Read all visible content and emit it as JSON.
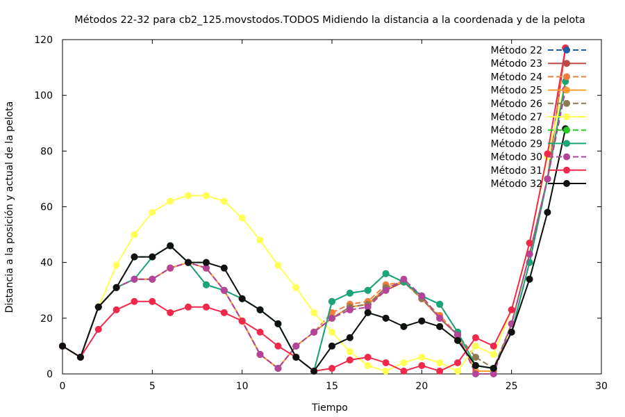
{
  "chart_data": {
    "type": "line",
    "title": "Métodos 22-32 para cb2_125.movstodos.TODOS Midiendo la distancia a la coordenada y de la pelota",
    "xlabel": "Tiempo",
    "ylabel": "Distancia a la posición y actual de la pelota",
    "xlim": [
      0,
      30
    ],
    "ylim": [
      0,
      120
    ],
    "x_ticks": [
      0,
      5,
      10,
      15,
      20,
      25,
      30
    ],
    "y_ticks": [
      0,
      20,
      40,
      60,
      80,
      100,
      120
    ],
    "grid": false,
    "legend_position": "top-right",
    "x": [
      0,
      1,
      2,
      3,
      4,
      5,
      6,
      7,
      8,
      9,
      10,
      11,
      12,
      13,
      14,
      15,
      16,
      17,
      18,
      19,
      20,
      21,
      22,
      23,
      24,
      25,
      26,
      27,
      28
    ],
    "series": [
      {
        "name": "Método 22",
        "color": "#1f5fa6",
        "dash": "8,4",
        "values": [
          10,
          6,
          24,
          31,
          42,
          42,
          46,
          40,
          32,
          30,
          27,
          23,
          18,
          6,
          1,
          26,
          29,
          30,
          36,
          33,
          28,
          25,
          15,
          3,
          2,
          15,
          40,
          70,
          117
        ]
      },
      {
        "name": "Método 23",
        "color": "#b94a48",
        "dash": "",
        "values": [
          10,
          6,
          24,
          31,
          34,
          34,
          38,
          40,
          38,
          30,
          19,
          7,
          2,
          10,
          15,
          20,
          24,
          25,
          30,
          33,
          27,
          20,
          14,
          1,
          1,
          18,
          43,
          70,
          117
        ]
      },
      {
        "name": "Método 24",
        "color": "#f07f3c",
        "dash": "8,4",
        "values": [
          10,
          6,
          24,
          31,
          34,
          34,
          38,
          40,
          38,
          30,
          19,
          7,
          2,
          10,
          15,
          22,
          25,
          26,
          32,
          33,
          27,
          21,
          14,
          1,
          1,
          18,
          43,
          70,
          117
        ]
      },
      {
        "name": "Método 25",
        "color": "#ff9f2f",
        "dash": "",
        "values": [
          10,
          6,
          24,
          31,
          34,
          34,
          38,
          40,
          38,
          30,
          19,
          7,
          2,
          10,
          15,
          20,
          24,
          25,
          31,
          33,
          27,
          20,
          14,
          1,
          1,
          18,
          43,
          70,
          105
        ]
      },
      {
        "name": "Método 26",
        "color": "#8c7a52",
        "dash": "8,4",
        "values": [
          10,
          6,
          24,
          31,
          34,
          34,
          38,
          40,
          38,
          30,
          19,
          7,
          2,
          10,
          15,
          20,
          24,
          25,
          31,
          33,
          27,
          20,
          14,
          6,
          2,
          18,
          43,
          70,
          105
        ]
      },
      {
        "name": "Método 27",
        "color": "#ffff55",
        "dash": "",
        "values": [
          10,
          6,
          24,
          39,
          50,
          58,
          62,
          64,
          64,
          62,
          56,
          48,
          39,
          31,
          22,
          15,
          8,
          3,
          1,
          4,
          6,
          4,
          1,
          10,
          7,
          23,
          47,
          78,
          105
        ]
      },
      {
        "name": "Método 28",
        "color": "#22cc22",
        "dash": "8,4",
        "values": [
          10,
          6,
          24,
          31,
          42,
          42,
          46,
          40,
          40,
          38,
          27,
          23,
          18,
          6,
          1,
          10,
          13,
          22,
          20,
          17,
          19,
          17,
          12,
          3,
          2,
          15,
          34,
          58,
          88
        ]
      },
      {
        "name": "Método 29",
        "color": "#1aa478",
        "dash": "",
        "values": [
          10,
          6,
          24,
          31,
          34,
          42,
          46,
          40,
          32,
          30,
          27,
          23,
          18,
          6,
          1,
          26,
          29,
          30,
          36,
          33,
          28,
          25,
          15,
          3,
          2,
          15,
          40,
          70,
          105
        ]
      },
      {
        "name": "Método 30",
        "color": "#b3449a",
        "dash": "8,4",
        "values": [
          10,
          6,
          24,
          31,
          34,
          34,
          38,
          40,
          38,
          30,
          19,
          7,
          2,
          10,
          15,
          20,
          23,
          24,
          30,
          34,
          28,
          20,
          14,
          0,
          0,
          18,
          43,
          70,
          102
        ]
      },
      {
        "name": "Método 31",
        "color": "#f0284a",
        "dash": "",
        "values": [
          10,
          6,
          16,
          23,
          26,
          26,
          22,
          24,
          24,
          22,
          19,
          15,
          10,
          6,
          1,
          2,
          5,
          6,
          4,
          1,
          3,
          1,
          4,
          13,
          10,
          23,
          47,
          79,
          117
        ]
      },
      {
        "name": "Método 32",
        "color": "#111111",
        "dash": "",
        "values": [
          10,
          6,
          24,
          31,
          42,
          42,
          46,
          40,
          40,
          38,
          27,
          23,
          18,
          6,
          1,
          10,
          13,
          22,
          20,
          17,
          19,
          17,
          12,
          3,
          2,
          15,
          34,
          58,
          88
        ]
      }
    ]
  }
}
